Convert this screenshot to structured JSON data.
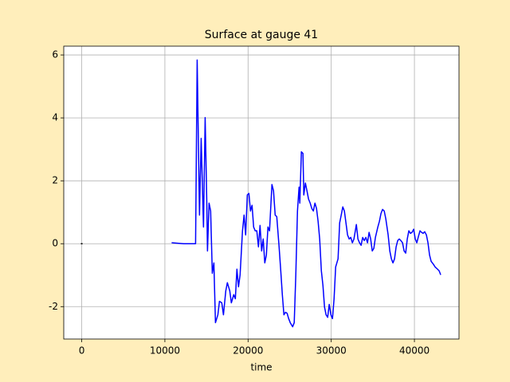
{
  "chart_data": {
    "type": "line",
    "title": "Surface at gauge 41",
    "xlabel": "time",
    "xlim": [
      -2160,
      45360
    ],
    "ylim": [
      -3.03,
      6.28
    ],
    "xticks": [
      0,
      10000,
      20000,
      30000,
      40000
    ],
    "yticks": [
      -2,
      0,
      2,
      4,
      6
    ],
    "grid": true,
    "series": [
      {
        "color": "#000000",
        "x": [
          -100,
          100
        ],
        "values": [
          0,
          0
        ]
      },
      {
        "color": "#0000ff",
        "x": [
          10810,
          12250,
          13690,
          13880,
          14160,
          14360,
          14640,
          14840,
          15030,
          15120,
          15310,
          15500,
          15700,
          15890,
          16080,
          16370,
          16560,
          16840,
          17040,
          17320,
          17510,
          17800,
          17990,
          18280,
          18470,
          18660,
          18850,
          19040,
          19330,
          19520,
          19710,
          19910,
          20100,
          20290,
          20480,
          20670,
          20860,
          21050,
          21250,
          21440,
          21630,
          21820,
          22010,
          22200,
          22390,
          22580,
          22870,
          23060,
          23260,
          23450,
          23730,
          23930,
          24120,
          24310,
          24500,
          24690,
          24880,
          25070,
          25360,
          25550,
          25740,
          25940,
          26130,
          26220,
          26410,
          26600,
          26700,
          26890,
          27080,
          27270,
          27470,
          27660,
          27850,
          28040,
          28230,
          28420,
          28610,
          28810,
          29000,
          29190,
          29380,
          29570,
          29760,
          29960,
          30150,
          30340,
          30530,
          30820,
          31010,
          31200,
          31390,
          31580,
          31770,
          31960,
          32160,
          32350,
          32540,
          32730,
          33020,
          33210,
          33400,
          33590,
          33780,
          33970,
          34160,
          34360,
          34550,
          34740,
          34930,
          35120,
          35310,
          35600,
          35790,
          35980,
          36170,
          36370,
          36560,
          36840,
          37040,
          37230,
          37420,
          37610,
          37800,
          37990,
          38180,
          38370,
          38570,
          38760,
          38950,
          39140,
          39330,
          39520,
          39710,
          39910,
          40100,
          40290,
          40480,
          40670,
          40860,
          41050,
          41240,
          41440,
          41630,
          41820,
          42010,
          42300,
          42490,
          42780,
          42970,
          43160
        ],
        "values": [
          0.03,
          0,
          0,
          5.84,
          0.91,
          3.35,
          0.53,
          4.01,
          1.42,
          -0.23,
          1.29,
          1.04,
          -0.94,
          -0.61,
          -2.51,
          -2.26,
          -1.83,
          -1.88,
          -2.26,
          -1.5,
          -1.24,
          -1.5,
          -1.88,
          -1.62,
          -1.75,
          -0.81,
          -1.37,
          -0.99,
          0.41,
          0.91,
          0.28,
          1.55,
          1.6,
          1.04,
          1.22,
          0.53,
          0.41,
          0.41,
          -0.1,
          0.58,
          -0.23,
          0.15,
          -0.61,
          -0.36,
          0.53,
          0.41,
          1.88,
          1.68,
          0.91,
          0.86,
          -0.1,
          -0.86,
          -1.62,
          -2.26,
          -2.18,
          -2.21,
          -2.38,
          -2.51,
          -2.64,
          -2.51,
          -0.99,
          1.04,
          1.8,
          1.29,
          2.92,
          2.87,
          1.55,
          1.93,
          1.68,
          1.42,
          1.29,
          1.12,
          1.04,
          1.29,
          1.12,
          0.71,
          0.15,
          -0.86,
          -1.32,
          -2.01,
          -2.26,
          -2.34,
          -1.93,
          -2.26,
          -2.38,
          -1.75,
          -0.74,
          -0.48,
          0.66,
          0.91,
          1.17,
          1.04,
          0.66,
          0.28,
          0.15,
          0.2,
          0.03,
          0.15,
          0.61,
          0.15,
          0.03,
          -0.05,
          0.2,
          0.1,
          0.2,
          0.03,
          0.36,
          0.15,
          -0.23,
          -0.15,
          0.2,
          0.53,
          0.71,
          0.96,
          1.09,
          1.04,
          0.79,
          0.28,
          -0.23,
          -0.48,
          -0.61,
          -0.48,
          -0.1,
          0.1,
          0.15,
          0.1,
          0.03,
          -0.23,
          -0.3,
          0.15,
          0.41,
          0.33,
          0.36,
          0.46,
          0.15,
          0.03,
          0.23,
          0.41,
          0.36,
          0.33,
          0.38,
          0.28,
          0.03,
          -0.36,
          -0.56,
          -0.66,
          -0.74,
          -0.81,
          -0.86,
          -0.99
        ]
      }
    ]
  }
}
